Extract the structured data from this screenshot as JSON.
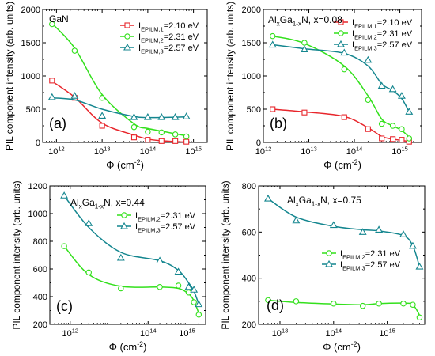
{
  "figure": {
    "panels": [
      {
        "panel_letter": "(a)",
        "title_parts": [
          [
            "GaN",
            ""
          ]
        ],
        "xlabel_parts": [
          [
            "Φ (cm",
            ""
          ],
          [
            "-2",
            "sup"
          ],
          [
            ")",
            ""
          ]
        ],
        "ylabel": "PIL component intensity (arb. units)",
        "x_ticks": [
          {
            "value": 1000000000000.0,
            "mantissa": "10",
            "exp": "12"
          },
          {
            "value": 10000000000000.0,
            "mantissa": "10",
            "exp": "13"
          },
          {
            "value": 100000000000000.0,
            "mantissa": "10",
            "exp": "14"
          },
          {
            "value": 1000000000000000.0,
            "mantissa": "10",
            "exp": "15"
          }
        ],
        "y_ticks": [
          "0",
          "500",
          "1000",
          "1500",
          "2000"
        ],
        "legend_position": "top-right",
        "series": [
          {
            "name_parts": [
              [
                "I",
                ""
              ],
              [
                "EPILM,1",
                "sub"
              ],
              [
                "=2.10 eV",
                ""
              ]
            ],
            "color": "#e8262c",
            "marker": "square"
          },
          {
            "name_parts": [
              [
                "I",
                ""
              ],
              [
                "EPILM,2",
                "sub"
              ],
              [
                "=2.31 eV",
                ""
              ]
            ],
            "color": "#33e01c",
            "marker": "circle"
          },
          {
            "name_parts": [
              [
                "I",
                ""
              ],
              [
                "EPILM,3",
                "sub"
              ],
              [
                "=2.57 eV",
                ""
              ]
            ],
            "color": "#14868f",
            "marker": "triangle"
          }
        ]
      },
      {
        "panel_letter": "(b)",
        "title_parts": [
          [
            "Al",
            ""
          ],
          [
            "x",
            "sub"
          ],
          [
            "Ga",
            ""
          ],
          [
            "1-x",
            "sub"
          ],
          [
            "N, x=0.08",
            ""
          ]
        ],
        "xlabel_parts": [
          [
            "Φ (cm",
            ""
          ],
          [
            "-2",
            "sup"
          ],
          [
            ")",
            ""
          ]
        ],
        "ylabel": "PIL component intensity (arb. units)",
        "x_ticks": [
          {
            "value": 1000000000000.0,
            "mantissa": "10",
            "exp": "12"
          },
          {
            "value": 10000000000000.0,
            "mantissa": "10",
            "exp": "13"
          },
          {
            "value": 100000000000000.0,
            "mantissa": "10",
            "exp": "14"
          },
          {
            "value": 1000000000000000.0,
            "mantissa": "10",
            "exp": "15"
          }
        ],
        "y_ticks": [
          "0",
          "500",
          "1000",
          "1500",
          "2000"
        ],
        "legend_position": "top-right",
        "series": [
          {
            "name_parts": [
              [
                "I",
                ""
              ],
              [
                "EPILM,1",
                "sub"
              ],
              [
                "=2.10 eV",
                ""
              ]
            ],
            "color": "#e8262c",
            "marker": "square"
          },
          {
            "name_parts": [
              [
                "I",
                ""
              ],
              [
                "EPILM,2",
                "sub"
              ],
              [
                "=2.31 eV",
                ""
              ]
            ],
            "color": "#33e01c",
            "marker": "circle"
          },
          {
            "name_parts": [
              [
                "I",
                ""
              ],
              [
                "EPILM,3",
                "sub"
              ],
              [
                "=2.57 eV",
                ""
              ]
            ],
            "color": "#14868f",
            "marker": "triangle"
          }
        ]
      },
      {
        "panel_letter": "(c)",
        "title_parts": [
          [
            "Al",
            ""
          ],
          [
            "x",
            "sub"
          ],
          [
            "Ga",
            ""
          ],
          [
            "1-x",
            "sub"
          ],
          [
            "N, x=0.44",
            ""
          ]
        ],
        "xlabel_parts": [
          [
            "Φ (cm",
            ""
          ],
          [
            "-2",
            "sup"
          ],
          [
            ")",
            ""
          ]
        ],
        "ylabel": "PIL component intensity (arb. units)",
        "x_ticks": [
          {
            "value": 1000000000000.0,
            "mantissa": "10",
            "exp": "12"
          },
          {
            "value": 100000000000000.0,
            "mantissa": "10",
            "exp": "14"
          },
          {
            "value": 1000000000000000.0,
            "mantissa": "10",
            "exp": "15"
          }
        ],
        "y_ticks": [
          "200",
          "400",
          "600",
          "800",
          "1000",
          "1200"
        ],
        "legend_position": "top-right",
        "series": [
          {
            "name_parts": [
              [
                "I",
                ""
              ],
              [
                "EPILM,2",
                "sub"
              ],
              [
                "=2.31 eV",
                ""
              ]
            ],
            "color": "#33e01c",
            "marker": "circle"
          },
          {
            "name_parts": [
              [
                "I",
                ""
              ],
              [
                "EPILM,3",
                "sub"
              ],
              [
                "=2.57 eV",
                ""
              ]
            ],
            "color": "#14868f",
            "marker": "triangle"
          }
        ]
      },
      {
        "panel_letter": "(d)",
        "title_parts": [
          [
            "Al",
            ""
          ],
          [
            "x",
            "sub"
          ],
          [
            "Ga",
            ""
          ],
          [
            "1-x",
            "sub"
          ],
          [
            "N, x=0.75",
            ""
          ]
        ],
        "xlabel_parts": [
          [
            "Φ (cm",
            ""
          ],
          [
            "-2",
            "sup"
          ],
          [
            ")",
            ""
          ]
        ],
        "ylabel": "PIL component intensity (arb. units)",
        "x_ticks": [
          {
            "value": 10000000000000.0,
            "mantissa": "10",
            "exp": "13"
          },
          {
            "value": 100000000000000.0,
            "mantissa": "10",
            "exp": "14"
          },
          {
            "value": 1000000000000000.0,
            "mantissa": "10",
            "exp": "15"
          }
        ],
        "y_ticks": [
          "200",
          "400",
          "600",
          "800"
        ],
        "legend_position": "center-right",
        "series": [
          {
            "name_parts": [
              [
                "I",
                ""
              ],
              [
                "EPILM,2",
                "sub"
              ],
              [
                "=2.31 eV",
                ""
              ]
            ],
            "color": "#33e01c",
            "marker": "circle"
          },
          {
            "name_parts": [
              [
                "I",
                ""
              ],
              [
                "EPILM,3",
                "sub"
              ],
              [
                "=2.57 eV",
                ""
              ]
            ],
            "color": "#14868f",
            "marker": "triangle"
          }
        ]
      }
    ]
  },
  "chart_data": [
    {
      "type": "scatter",
      "title": "GaN",
      "xlabel": "Φ (cm-2)",
      "ylabel": "PIL component intensity (arb. units)",
      "xscale": "log",
      "xlim": [
        500000000000.0,
        2000000000000000.0
      ],
      "ylim": [
        0,
        2000
      ],
      "grid": false,
      "legend": "top-right",
      "series": [
        {
          "name": "IEPILM,1=2.10 eV",
          "x": [
            800000000000.0,
            2500000000000.0,
            10000000000000.0,
            50000000000000.0,
            100000000000000.0,
            200000000000000.0,
            400000000000000.0,
            700000000000000.0
          ],
          "y": [
            930,
            670,
            250,
            75,
            40,
            20,
            20,
            10
          ],
          "fit_y": [
            920,
            680,
            290,
            110,
            50,
            25,
            12,
            5
          ]
        },
        {
          "name": "IEPILM,2=2.31 eV",
          "x": [
            800000000000.0,
            2500000000000.0,
            10000000000000.0,
            50000000000000.0,
            100000000000000.0,
            200000000000000.0,
            400000000000000.0,
            700000000000000.0
          ],
          "y": [
            1780,
            1380,
            670,
            230,
            160,
            150,
            120,
            90
          ],
          "fit_y": [
            1790,
            1420,
            720,
            280,
            210,
            170,
            130,
            100
          ]
        },
        {
          "name": "IEPILM,3=2.57 eV",
          "x": [
            800000000000.0,
            2500000000000.0,
            10000000000000.0,
            50000000000000.0,
            100000000000000.0,
            200000000000000.0,
            400000000000000.0,
            700000000000000.0
          ],
          "y": [
            680,
            700,
            400,
            380,
            380,
            380,
            380,
            390
          ],
          "fit_y": [
            670,
            640,
            500,
            390,
            375,
            375,
            380,
            385
          ]
        }
      ]
    },
    {
      "type": "scatter",
      "title": "AlxGa1-xN, x=0.08",
      "xlabel": "Φ (cm-2)",
      "ylabel": "PIL component intensity (arb. units)",
      "xscale": "log",
      "xlim": [
        1000000000000.0,
        3000000000000000.0
      ],
      "ylim": [
        0,
        2000
      ],
      "grid": false,
      "legend": "top-right",
      "series": [
        {
          "name": "IEPILM,1=2.10 eV",
          "x": [
            1600000000000.0,
            8000000000000.0,
            60000000000000.0,
            200000000000000.0,
            400000000000000.0,
            700000000000000.0,
            1100000000000000.0,
            1600000000000000.0
          ],
          "y": [
            500,
            450,
            380,
            200,
            60,
            50,
            40,
            10
          ],
          "fit_y": [
            500,
            460,
            390,
            220,
            90,
            50,
            30,
            15
          ]
        },
        {
          "name": "IEPILM,2=2.31 eV",
          "x": [
            1600000000000.0,
            8000000000000.0,
            60000000000000.0,
            200000000000000.0,
            400000000000000.0,
            700000000000000.0,
            1100000000000000.0,
            1600000000000000.0
          ],
          "y": [
            1600,
            1500,
            1100,
            640,
            280,
            250,
            200,
            60
          ],
          "fit_y": [
            1600,
            1490,
            1150,
            700,
            350,
            250,
            180,
            80
          ]
        },
        {
          "name": "IEPILM,3=2.57 eV",
          "x": [
            1600000000000.0,
            8000000000000.0,
            60000000000000.0,
            200000000000000.0,
            400000000000000.0,
            700000000000000.0,
            1100000000000000.0,
            1600000000000000.0
          ],
          "y": [
            1470,
            1400,
            1350,
            1240,
            850,
            800,
            700,
            460
          ],
          "fit_y": [
            1470,
            1410,
            1340,
            1150,
            880,
            780,
            660,
            460
          ]
        }
      ]
    },
    {
      "type": "scatter",
      "title": "AlxGa1-xN, x=0.44",
      "xlabel": "Φ (cm-2)",
      "ylabel": "PIL component intensity (arb. units)",
      "xscale": "log",
      "xlim": [
        300000000000.0,
        3000000000000000.0
      ],
      "ylim": [
        200,
        1200
      ],
      "grid": false,
      "legend": "top-right",
      "series": [
        {
          "name": "IEPILM,2=2.31 eV",
          "x": [
            700000000000.0,
            3000000000000.0,
            20000000000000.0,
            200000000000000.0,
            600000000000000.0,
            1100000000000000.0,
            1500000000000000.0,
            2000000000000000.0
          ],
          "y": [
            765,
            575,
            460,
            470,
            480,
            430,
            360,
            270
          ],
          "fit_y": [
            765,
            560,
            475,
            470,
            460,
            420,
            370,
            280
          ]
        },
        {
          "name": "IEPILM,3=2.57 eV",
          "x": [
            700000000000.0,
            3000000000000.0,
            20000000000000.0,
            200000000000000.0,
            600000000000000.0,
            1100000000000000.0,
            1500000000000000.0,
            2000000000000000.0
          ],
          "y": [
            1130,
            930,
            680,
            660,
            580,
            470,
            450,
            345
          ],
          "fit_y": [
            1130,
            900,
            720,
            660,
            590,
            500,
            440,
            345
          ]
        }
      ]
    },
    {
      "type": "scatter",
      "title": "AlxGa1-xN, x=0.75",
      "xlabel": "Φ (cm-2)",
      "ylabel": "PIL component intensity (arb. units)",
      "xscale": "log",
      "xlim": [
        4000000000000.0,
        5000000000000000.0
      ],
      "ylim": [
        200,
        800
      ],
      "grid": false,
      "legend": "center-right",
      "series": [
        {
          "name": "IEPILM,2=2.31 eV",
          "x": [
            6000000000000.0,
            20000000000000.0,
            100000000000000.0,
            350000000000000.0,
            700000000000000.0,
            2000000000000000.0,
            3000000000000000.0,
            4000000000000000.0
          ],
          "y": [
            305,
            300,
            290,
            280,
            290,
            290,
            285,
            230
          ],
          "fit_y": [
            305,
            295,
            288,
            285,
            290,
            292,
            285,
            240
          ]
        },
        {
          "name": "IEPILM,3=2.57 eV",
          "x": [
            6000000000000.0,
            20000000000000.0,
            100000000000000.0,
            350000000000000.0,
            700000000000000.0,
            2000000000000000.0,
            3000000000000000.0,
            4000000000000000.0
          ],
          "y": [
            745,
            650,
            630,
            600,
            610,
            590,
            540,
            450
          ],
          "fit_y": [
            745,
            665,
            625,
            610,
            605,
            585,
            540,
            450
          ]
        }
      ]
    }
  ]
}
